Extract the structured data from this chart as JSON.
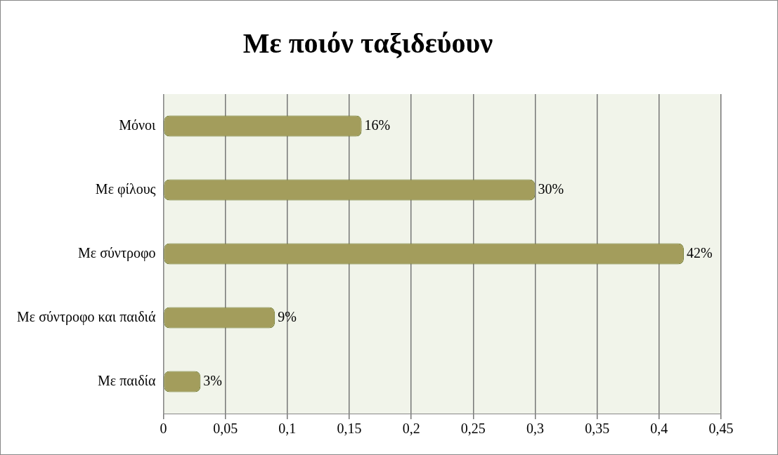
{
  "chart_data": {
    "type": "bar",
    "orientation": "horizontal",
    "title": "Με ποιόν ταξιδεύουν",
    "categories": [
      "Μόνοι",
      "Με φίλους",
      "Με σύντροφο",
      "Με σύντροφο και παιδιά",
      "Με παιδία"
    ],
    "values": [
      0.16,
      0.3,
      0.42,
      0.09,
      0.03
    ],
    "value_labels": [
      "16%",
      "30%",
      "42%",
      "9%",
      "3%"
    ],
    "color": "#a39d5c",
    "xlim": [
      0,
      0.45
    ],
    "xticks": [
      0,
      {
        "value": 0.05,
        "label": "0,05"
      },
      {
        "value": 0.1,
        "label": "0,1"
      },
      {
        "value": 0.15,
        "label": "0,15"
      },
      {
        "value": 0.2,
        "label": "0,2"
      },
      {
        "value": 0.25,
        "label": "0,25"
      },
      {
        "value": 0.3,
        "label": "0,3"
      },
      {
        "value": 0.35,
        "label": "0,35"
      },
      {
        "value": 0.4,
        "label": "0,4"
      },
      {
        "value": 0.45,
        "label": "0,45"
      }
    ],
    "grid": "x",
    "legend": false
  }
}
